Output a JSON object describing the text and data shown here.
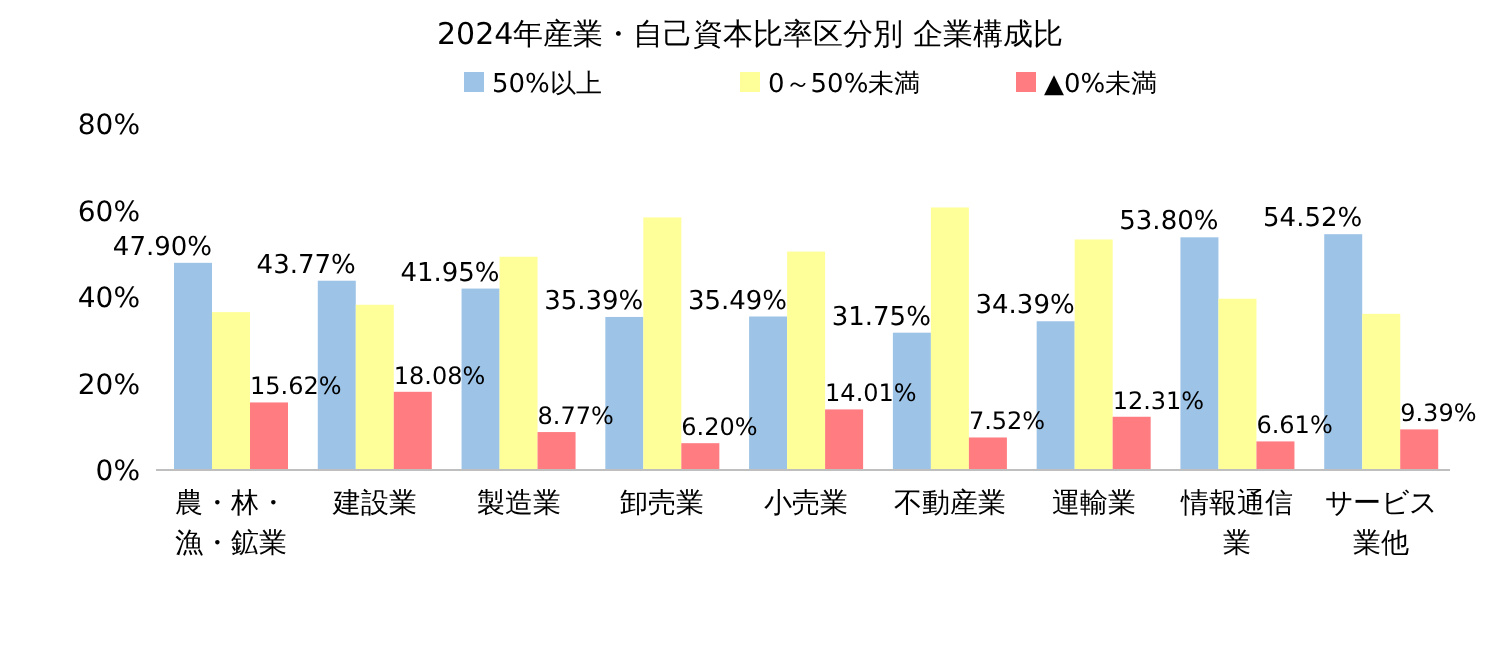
{
  "chart_data": {
    "type": "bar",
    "title": "2024年産業・自己資本比率区分別 企業構成比",
    "categories": [
      "農・林・漁・鉱業",
      "建設業",
      "製造業",
      "卸売業",
      "小売業",
      "不動産業",
      "運輸業",
      "情報通信業",
      "サービス業他"
    ],
    "series": [
      {
        "name": "50%以上",
        "color": "#9dc3e6",
        "values": [
          47.9,
          43.77,
          41.95,
          35.39,
          35.49,
          31.75,
          34.39,
          53.8,
          54.52
        ],
        "value_labels": [
          "47.90%",
          "43.77%",
          "41.95%",
          "35.39%",
          "35.49%",
          "31.75%",
          "34.39%",
          "53.80%",
          "54.52%"
        ]
      },
      {
        "name": "0～50%未満",
        "color": "#ffff99",
        "values": [
          36.5,
          38.2,
          49.3,
          58.4,
          50.5,
          60.7,
          53.3,
          39.6,
          36.1
        ]
      },
      {
        "name": "▲0%未満",
        "color": "#ff7c80",
        "values": [
          15.62,
          18.08,
          8.77,
          6.2,
          14.01,
          7.52,
          12.31,
          6.61,
          9.39
        ],
        "value_labels": [
          "15.62%",
          "18.08%",
          "8.77%",
          "6.20%",
          "14.01%",
          "7.52%",
          "12.31%",
          "6.61%",
          "9.39%"
        ]
      }
    ],
    "ylim": [
      0,
      80
    ],
    "yticks": [
      {
        "value": 0,
        "label": "0%"
      },
      {
        "value": 20,
        "label": "20%"
      },
      {
        "value": 40,
        "label": "40%"
      },
      {
        "value": 60,
        "label": "60%"
      },
      {
        "value": 80,
        "label": "80%"
      }
    ],
    "grid": false,
    "legend": "top"
  }
}
